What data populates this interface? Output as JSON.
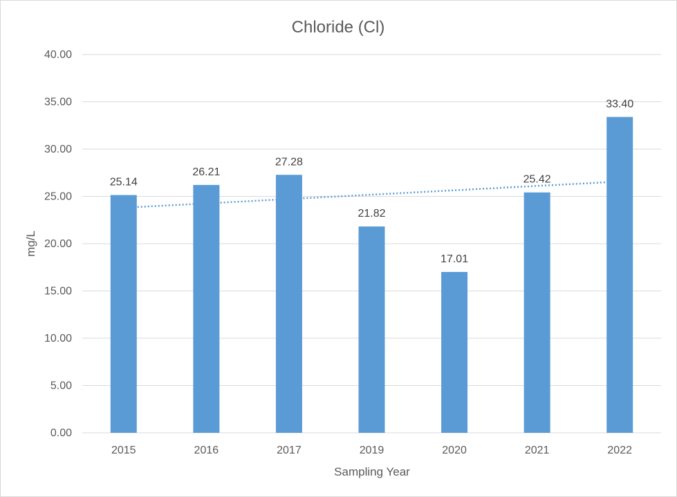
{
  "chart_data": {
    "type": "bar",
    "title": "Chloride (Cl)",
    "xlabel": "Sampling Year",
    "ylabel": "mg/L",
    "categories": [
      "2015",
      "2016",
      "2017",
      "2019",
      "2020",
      "2021",
      "2022"
    ],
    "values": [
      25.14,
      26.21,
      27.28,
      21.82,
      17.01,
      25.42,
      33.4
    ],
    "value_labels": [
      "25.14",
      "26.21",
      "27.28",
      "21.82",
      "17.01",
      "25.42",
      "33.40"
    ],
    "ylim": [
      0,
      40
    ],
    "yticks": [
      "0.00",
      "5.00",
      "10.00",
      "15.00",
      "20.00",
      "25.00",
      "30.00",
      "35.00",
      "40.00"
    ],
    "ytick_values": [
      0,
      5,
      10,
      15,
      20,
      25,
      30,
      35,
      40
    ],
    "grid": true,
    "trendline": {
      "type": "linear",
      "style": "dotted"
    },
    "colors": {
      "bar": "#5b9bd5",
      "trendline": "#5b9bd5",
      "grid": "#d9d9d9",
      "text": "#595959"
    }
  }
}
